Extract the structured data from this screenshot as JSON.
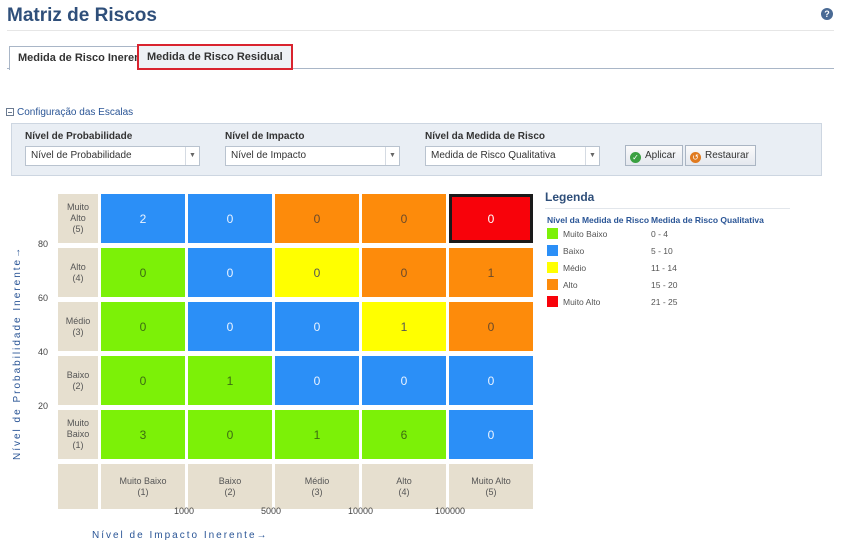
{
  "header": {
    "title": "Matriz de Riscos",
    "help_icon": "help-icon"
  },
  "tabs": [
    {
      "label": "Medida de Risco Inerente",
      "active": true
    },
    {
      "label": "Medida de Risco Residual",
      "highlighted": true
    }
  ],
  "config": {
    "label": "Configuração das Escalas"
  },
  "filters": {
    "probability": {
      "label": "Nível de Probabilidade",
      "value": "Nível de Probabilidade"
    },
    "impact": {
      "label": "Nível de Impacto",
      "value": "Nível de Impacto"
    },
    "risk_measure": {
      "label": "Nível da Medida de Risco",
      "value": "Medida de Risco Qualitativa"
    },
    "apply_label": "Aplicar",
    "reset_label": "Restaurar"
  },
  "colors": {
    "Muito Baixo": "#7cf107",
    "Baixo": "#2b8ff7",
    "Médio": "#ffff00",
    "Alto": "#fd8b0b",
    "Muito Alto": "#f8020a"
  },
  "matrix": {
    "rows": [
      {
        "header": [
          "Muito",
          "Alto",
          "(5)"
        ],
        "cells": [
          {
            "v": "2",
            "c": "Baixo"
          },
          {
            "v": "0",
            "c": "Baixo"
          },
          {
            "v": "0",
            "c": "Alto"
          },
          {
            "v": "0",
            "c": "Alto"
          },
          {
            "v": "0",
            "c": "Muito Alto",
            "selected": true
          }
        ]
      },
      {
        "header": [
          "Alto",
          "(4)"
        ],
        "cells": [
          {
            "v": "0",
            "c": "Muito Baixo"
          },
          {
            "v": "0",
            "c": "Baixo"
          },
          {
            "v": "0",
            "c": "Médio"
          },
          {
            "v": "0",
            "c": "Alto"
          },
          {
            "v": "1",
            "c": "Alto"
          }
        ]
      },
      {
        "header": [
          "Médio",
          "(3)"
        ],
        "cells": [
          {
            "v": "0",
            "c": "Muito Baixo"
          },
          {
            "v": "0",
            "c": "Baixo"
          },
          {
            "v": "0",
            "c": "Baixo"
          },
          {
            "v": "1",
            "c": "Médio"
          },
          {
            "v": "0",
            "c": "Alto"
          }
        ]
      },
      {
        "header": [
          "Baixo",
          "(2)"
        ],
        "cells": [
          {
            "v": "0",
            "c": "Muito Baixo"
          },
          {
            "v": "1",
            "c": "Muito Baixo"
          },
          {
            "v": "0",
            "c": "Baixo"
          },
          {
            "v": "0",
            "c": "Baixo"
          },
          {
            "v": "0",
            "c": "Baixo"
          }
        ]
      },
      {
        "header": [
          "Muito",
          "Baixo",
          "(1)"
        ],
        "cells": [
          {
            "v": "3",
            "c": "Muito Baixo"
          },
          {
            "v": "0",
            "c": "Muito Baixo"
          },
          {
            "v": "1",
            "c": "Muito Baixo"
          },
          {
            "v": "6",
            "c": "Muito Baixo"
          },
          {
            "v": "0",
            "c": "Baixo"
          }
        ]
      }
    ],
    "col_headers": [
      [
        "Muito Baixo",
        "(1)"
      ],
      [
        "Baixo",
        "(2)"
      ],
      [
        "Médio",
        "(3)"
      ],
      [
        "Alto",
        "(4)"
      ],
      [
        "Muito Alto",
        "(5)"
      ]
    ],
    "y_ticks": [
      "80",
      "60",
      "40",
      "20"
    ],
    "x_ticks": [
      "1000",
      "5000",
      "10000",
      "100000"
    ],
    "y_axis_label": "Nível de Probabilidade Inerente→",
    "x_axis_label": "Nível de Impacto Inerente→"
  },
  "legend": {
    "title": "Legenda",
    "col1": "Nível da Medida de Risco",
    "col2": "Medida de Risco Qualitativa",
    "items": [
      {
        "name": "Muito Baixo",
        "range": "0 - 4"
      },
      {
        "name": "Baixo",
        "range": "5 - 10"
      },
      {
        "name": "Médio",
        "range": "11 - 14"
      },
      {
        "name": "Alto",
        "range": "15 - 20"
      },
      {
        "name": "Muito Alto",
        "range": "21 - 25"
      }
    ]
  }
}
